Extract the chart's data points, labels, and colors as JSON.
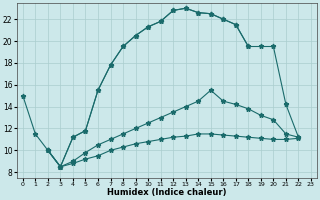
{
  "xlabel": "Humidex (Indice chaleur)",
  "xlim": [
    -0.5,
    23.5
  ],
  "ylim": [
    7.5,
    23.5
  ],
  "xticks": [
    0,
    1,
    2,
    3,
    4,
    5,
    6,
    7,
    8,
    9,
    10,
    11,
    12,
    13,
    14,
    15,
    16,
    17,
    18,
    19,
    20,
    21,
    22,
    23
  ],
  "yticks": [
    8,
    10,
    12,
    14,
    16,
    18,
    20,
    22
  ],
  "bg_color": "#cce8ea",
  "line_color": "#1a6b6b",
  "grid_color": "#aacece",
  "curves": [
    {
      "x": [
        0,
        1,
        2,
        3,
        4,
        5,
        6,
        7,
        8,
        9,
        10,
        11,
        12,
        13,
        14,
        15,
        16,
        17,
        18
      ],
      "y": [
        15.0,
        11.5,
        10.0,
        8.5,
        11.2,
        11.8,
        15.5,
        17.8,
        19.5,
        20.5,
        21.3,
        21.8,
        22.8,
        23.0,
        22.6,
        22.5,
        22.0,
        21.5,
        19.5
      ]
    },
    {
      "x": [
        2,
        3,
        4,
        5,
        6,
        7,
        8,
        9,
        10,
        11,
        12,
        13,
        14,
        15,
        16,
        17,
        18,
        19,
        20,
        21,
        22
      ],
      "y": [
        10.0,
        8.5,
        11.2,
        11.8,
        15.5,
        17.8,
        19.5,
        20.5,
        21.3,
        21.8,
        22.8,
        23.0,
        22.6,
        22.5,
        22.0,
        21.5,
        19.5,
        19.5,
        19.5,
        14.2,
        11.2
      ]
    },
    {
      "x": [
        2,
        3,
        4,
        5,
        6,
        7,
        8,
        9,
        10,
        11,
        12,
        13,
        14,
        15,
        16,
        17,
        18,
        19,
        20,
        21,
        22
      ],
      "y": [
        10.0,
        8.5,
        9.0,
        9.8,
        10.5,
        11.0,
        11.5,
        12.0,
        12.5,
        13.0,
        13.5,
        14.0,
        14.5,
        15.5,
        14.5,
        14.2,
        13.8,
        13.2,
        12.8,
        11.5,
        11.2
      ]
    },
    {
      "x": [
        2,
        3,
        4,
        5,
        6,
        7,
        8,
        9,
        10,
        11,
        12,
        13,
        14,
        15,
        16,
        17,
        18,
        19,
        20,
        21,
        22
      ],
      "y": [
        10.0,
        8.5,
        8.8,
        9.2,
        9.5,
        10.0,
        10.3,
        10.6,
        10.8,
        11.0,
        11.2,
        11.3,
        11.5,
        11.5,
        11.4,
        11.3,
        11.2,
        11.1,
        11.0,
        11.0,
        11.1
      ]
    }
  ]
}
